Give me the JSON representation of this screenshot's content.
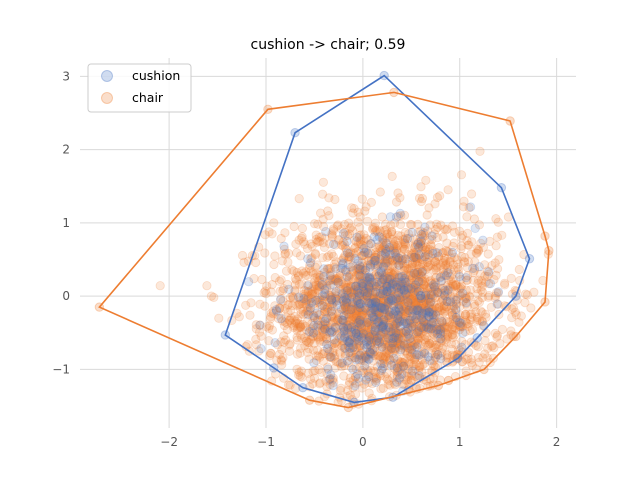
{
  "chart_data": {
    "type": "scatter",
    "title": "cushion -> chair; 0.59",
    "xlabel": "",
    "ylabel": "",
    "xlim": [
      -2.92,
      2.2
    ],
    "ylim": [
      -1.8,
      3.25
    ],
    "xticks": [
      -2,
      -1,
      0,
      1,
      2
    ],
    "yticks": [
      -1,
      0,
      1,
      2,
      3
    ],
    "grid": true,
    "legend_position": "top-left",
    "series": [
      {
        "name": "cushion",
        "color": "#4472c4",
        "hull": [
          [
            0.22,
            3.01
          ],
          [
            1.43,
            1.48
          ],
          [
            1.72,
            0.51
          ],
          [
            1.58,
            0.0
          ],
          [
            1.18,
            -0.57
          ],
          [
            0.98,
            -0.85
          ],
          [
            0.31,
            -1.38
          ],
          [
            -0.09,
            -1.45
          ],
          [
            -0.62,
            -1.25
          ],
          [
            -0.92,
            -0.98
          ],
          [
            -1.42,
            -0.53
          ],
          [
            -0.7,
            2.23
          ]
        ],
        "center": [
          0.2,
          -0.2
        ],
        "spread": [
          0.5,
          0.5
        ],
        "count": 420
      },
      {
        "name": "chair",
        "color": "#ed7d31",
        "hull": [
          [
            0.32,
            2.78
          ],
          [
            1.52,
            2.39
          ],
          [
            1.88,
            0.82
          ],
          [
            1.92,
            0.62
          ],
          [
            1.88,
            -0.08
          ],
          [
            1.58,
            -0.55
          ],
          [
            1.25,
            -1.0
          ],
          [
            0.78,
            -1.22
          ],
          [
            -0.15,
            -1.52
          ],
          [
            -0.55,
            -1.42
          ],
          [
            -2.72,
            -0.15
          ],
          [
            -0.98,
            2.55
          ]
        ],
        "center": [
          0.25,
          -0.15
        ],
        "spread": [
          0.58,
          0.62
        ],
        "count": 2400
      }
    ]
  }
}
